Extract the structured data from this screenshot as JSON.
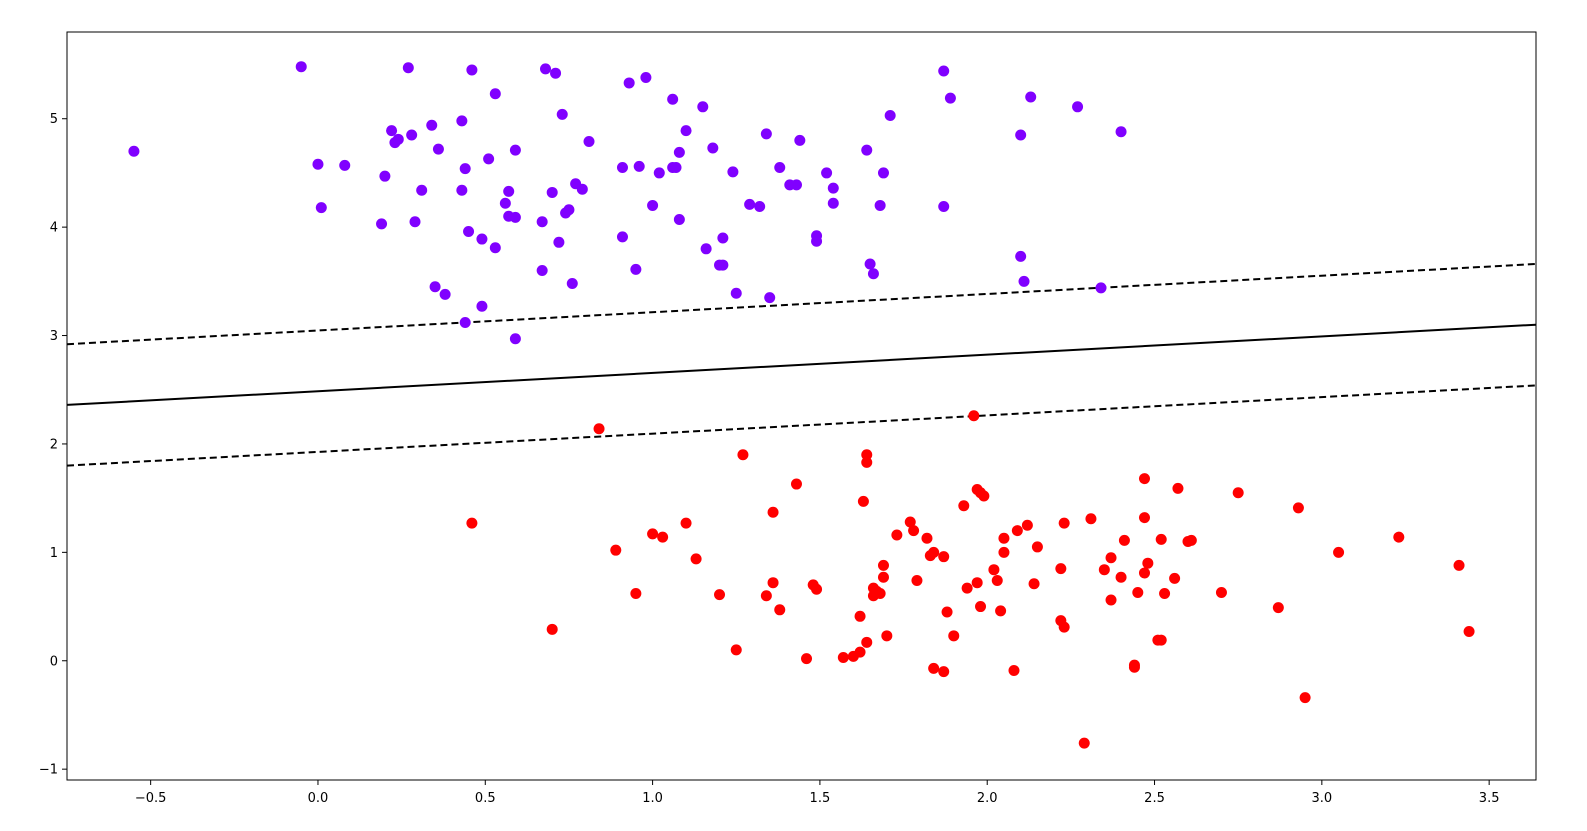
{
  "chart_data": {
    "type": "scatter",
    "title": "",
    "xlabel": "",
    "ylabel": "",
    "xlim": [
      -0.75,
      3.64
    ],
    "ylim": [
      -1.1,
      5.8
    ],
    "grid": false,
    "x_ticks": [
      -0.5,
      0.0,
      0.5,
      1.0,
      1.5,
      2.0,
      2.5,
      3.0,
      3.5
    ],
    "x_tick_labels": [
      "−0.5",
      "0.0",
      "0.5",
      "1.0",
      "1.5",
      "2.0",
      "2.5",
      "3.0",
      "3.5"
    ],
    "y_ticks": [
      -1,
      0,
      1,
      2,
      3,
      4,
      5
    ],
    "y_tick_labels": [
      "−1",
      "0",
      "1",
      "2",
      "3",
      "4",
      "5"
    ],
    "series": [
      {
        "color": "#8000ff",
        "points": [
          [
            -0.55,
            4.7
          ],
          [
            -0.05,
            5.48
          ],
          [
            0.0,
            4.58
          ],
          [
            0.01,
            4.18
          ],
          [
            0.08,
            4.57
          ],
          [
            0.19,
            4.03
          ],
          [
            0.2,
            4.47
          ],
          [
            0.22,
            4.89
          ],
          [
            0.23,
            4.78
          ],
          [
            0.24,
            4.81
          ],
          [
            0.27,
            5.47
          ],
          [
            0.28,
            4.85
          ],
          [
            0.29,
            4.05
          ],
          [
            0.31,
            4.34
          ],
          [
            0.34,
            4.94
          ],
          [
            0.35,
            3.45
          ],
          [
            0.36,
            4.72
          ],
          [
            0.38,
            3.38
          ],
          [
            0.43,
            4.34
          ],
          [
            0.43,
            4.98
          ],
          [
            0.44,
            4.54
          ],
          [
            0.44,
            3.12
          ],
          [
            0.45,
            3.96
          ],
          [
            0.46,
            5.45
          ],
          [
            0.49,
            3.27
          ],
          [
            0.49,
            3.89
          ],
          [
            0.51,
            4.63
          ],
          [
            0.53,
            3.81
          ],
          [
            0.53,
            5.23
          ],
          [
            0.56,
            4.22
          ],
          [
            0.57,
            4.1
          ],
          [
            0.57,
            4.33
          ],
          [
            0.59,
            4.09
          ],
          [
            0.59,
            4.71
          ],
          [
            0.59,
            2.97
          ],
          [
            0.67,
            3.6
          ],
          [
            0.67,
            4.05
          ],
          [
            0.68,
            5.46
          ],
          [
            0.7,
            4.32
          ],
          [
            0.71,
            5.42
          ],
          [
            0.72,
            3.86
          ],
          [
            0.73,
            5.04
          ],
          [
            0.74,
            4.13
          ],
          [
            0.75,
            4.16
          ],
          [
            0.76,
            3.48
          ],
          [
            0.77,
            4.4
          ],
          [
            0.79,
            4.35
          ],
          [
            0.81,
            4.79
          ],
          [
            0.91,
            4.55
          ],
          [
            0.91,
            3.91
          ],
          [
            0.93,
            5.33
          ],
          [
            0.95,
            3.61
          ],
          [
            0.96,
            4.56
          ],
          [
            0.98,
            5.38
          ],
          [
            1.0,
            4.2
          ],
          [
            1.02,
            4.5
          ],
          [
            1.06,
            4.55
          ],
          [
            1.06,
            5.18
          ],
          [
            1.07,
            4.55
          ],
          [
            1.08,
            4.69
          ],
          [
            1.08,
            4.07
          ],
          [
            1.1,
            4.89
          ],
          [
            1.15,
            5.11
          ],
          [
            1.16,
            3.8
          ],
          [
            1.18,
            4.73
          ],
          [
            1.2,
            3.65
          ],
          [
            1.21,
            3.9
          ],
          [
            1.21,
            3.65
          ],
          [
            1.24,
            4.51
          ],
          [
            1.25,
            3.39
          ],
          [
            1.29,
            4.21
          ],
          [
            1.32,
            4.19
          ],
          [
            1.34,
            4.86
          ],
          [
            1.35,
            3.35
          ],
          [
            1.38,
            4.55
          ],
          [
            1.41,
            4.39
          ],
          [
            1.43,
            4.39
          ],
          [
            1.44,
            4.8
          ],
          [
            1.49,
            3.92
          ],
          [
            1.49,
            3.87
          ],
          [
            1.52,
            4.5
          ],
          [
            1.54,
            4.22
          ],
          [
            1.54,
            4.36
          ],
          [
            1.64,
            4.71
          ],
          [
            1.65,
            3.66
          ],
          [
            1.66,
            3.57
          ],
          [
            1.68,
            4.2
          ],
          [
            1.69,
            4.5
          ],
          [
            1.71,
            5.03
          ],
          [
            1.87,
            5.44
          ],
          [
            1.87,
            4.19
          ],
          [
            1.89,
            5.19
          ],
          [
            2.1,
            4.85
          ],
          [
            2.1,
            3.73
          ],
          [
            2.11,
            3.5
          ],
          [
            2.13,
            5.2
          ],
          [
            2.27,
            5.11
          ],
          [
            2.34,
            3.44
          ],
          [
            2.4,
            4.88
          ]
        ]
      },
      {
        "color": "#ff0000",
        "points": [
          [
            0.46,
            1.27
          ],
          [
            0.7,
            0.29
          ],
          [
            0.84,
            2.14
          ],
          [
            0.89,
            1.02
          ],
          [
            0.95,
            0.62
          ],
          [
            1.0,
            1.17
          ],
          [
            1.03,
            1.14
          ],
          [
            1.1,
            1.27
          ],
          [
            1.13,
            0.94
          ],
          [
            1.2,
            0.61
          ],
          [
            1.25,
            0.1
          ],
          [
            1.27,
            1.9
          ],
          [
            1.34,
            0.6
          ],
          [
            1.36,
            0.72
          ],
          [
            1.36,
            1.37
          ],
          [
            1.38,
            0.47
          ],
          [
            1.43,
            1.63
          ],
          [
            1.46,
            0.02
          ],
          [
            1.48,
            0.7
          ],
          [
            1.49,
            0.66
          ],
          [
            1.57,
            0.03
          ],
          [
            1.6,
            0.04
          ],
          [
            1.62,
            0.08
          ],
          [
            1.62,
            0.41
          ],
          [
            1.63,
            1.47
          ],
          [
            1.64,
            1.83
          ],
          [
            1.64,
            1.9
          ],
          [
            1.64,
            0.17
          ],
          [
            1.66,
            0.6
          ],
          [
            1.66,
            0.67
          ],
          [
            1.67,
            0.64
          ],
          [
            1.68,
            0.62
          ],
          [
            1.69,
            0.77
          ],
          [
            1.69,
            0.88
          ],
          [
            1.7,
            0.23
          ],
          [
            1.73,
            1.16
          ],
          [
            1.77,
            1.28
          ],
          [
            1.78,
            1.2
          ],
          [
            1.79,
            0.74
          ],
          [
            1.82,
            1.13
          ],
          [
            1.83,
            0.97
          ],
          [
            1.84,
            1.0
          ],
          [
            1.84,
            -0.07
          ],
          [
            1.87,
            0.96
          ],
          [
            1.87,
            -0.1
          ],
          [
            1.88,
            0.45
          ],
          [
            1.9,
            0.23
          ],
          [
            1.93,
            1.43
          ],
          [
            1.94,
            0.67
          ],
          [
            1.96,
            2.26
          ],
          [
            1.97,
            1.58
          ],
          [
            1.97,
            0.72
          ],
          [
            1.98,
            0.5
          ],
          [
            1.98,
            1.55
          ],
          [
            1.99,
            1.52
          ],
          [
            2.02,
            0.84
          ],
          [
            2.03,
            0.74
          ],
          [
            2.04,
            0.46
          ],
          [
            2.05,
            1.13
          ],
          [
            2.05,
            1.0
          ],
          [
            2.08,
            -0.09
          ],
          [
            2.09,
            1.2
          ],
          [
            2.12,
            1.25
          ],
          [
            2.14,
            0.71
          ],
          [
            2.15,
            1.05
          ],
          [
            2.22,
            0.37
          ],
          [
            2.22,
            0.85
          ],
          [
            2.23,
            0.31
          ],
          [
            2.23,
            1.27
          ],
          [
            2.29,
            -0.76
          ],
          [
            2.31,
            1.31
          ],
          [
            2.35,
            0.84
          ],
          [
            2.37,
            0.95
          ],
          [
            2.37,
            0.56
          ],
          [
            2.4,
            0.77
          ],
          [
            2.41,
            1.11
          ],
          [
            2.44,
            -0.04
          ],
          [
            2.44,
            -0.06
          ],
          [
            2.45,
            0.63
          ],
          [
            2.47,
            0.81
          ],
          [
            2.47,
            1.68
          ],
          [
            2.47,
            1.32
          ],
          [
            2.48,
            0.9
          ],
          [
            2.51,
            0.19
          ],
          [
            2.52,
            1.12
          ],
          [
            2.52,
            0.19
          ],
          [
            2.53,
            0.62
          ],
          [
            2.56,
            0.76
          ],
          [
            2.57,
            1.59
          ],
          [
            2.6,
            1.1
          ],
          [
            2.61,
            1.11
          ],
          [
            2.7,
            0.63
          ],
          [
            2.75,
            1.55
          ],
          [
            2.87,
            0.49
          ],
          [
            2.93,
            1.41
          ],
          [
            2.95,
            -0.34
          ],
          [
            3.05,
            1.0
          ],
          [
            3.23,
            1.14
          ],
          [
            3.41,
            0.88
          ],
          [
            3.44,
            0.27
          ]
        ]
      }
    ],
    "lines": [
      {
        "style": "solid",
        "color": "#000000",
        "points": [
          [
            -0.75,
            2.36
          ],
          [
            3.64,
            3.1
          ]
        ]
      },
      {
        "style": "dashed",
        "color": "#000000",
        "points": [
          [
            -0.75,
            2.92
          ],
          [
            3.64,
            3.66
          ]
        ]
      },
      {
        "style": "dashed",
        "color": "#000000",
        "points": [
          [
            -0.75,
            1.8
          ],
          [
            3.64,
            2.54
          ]
        ]
      }
    ]
  }
}
